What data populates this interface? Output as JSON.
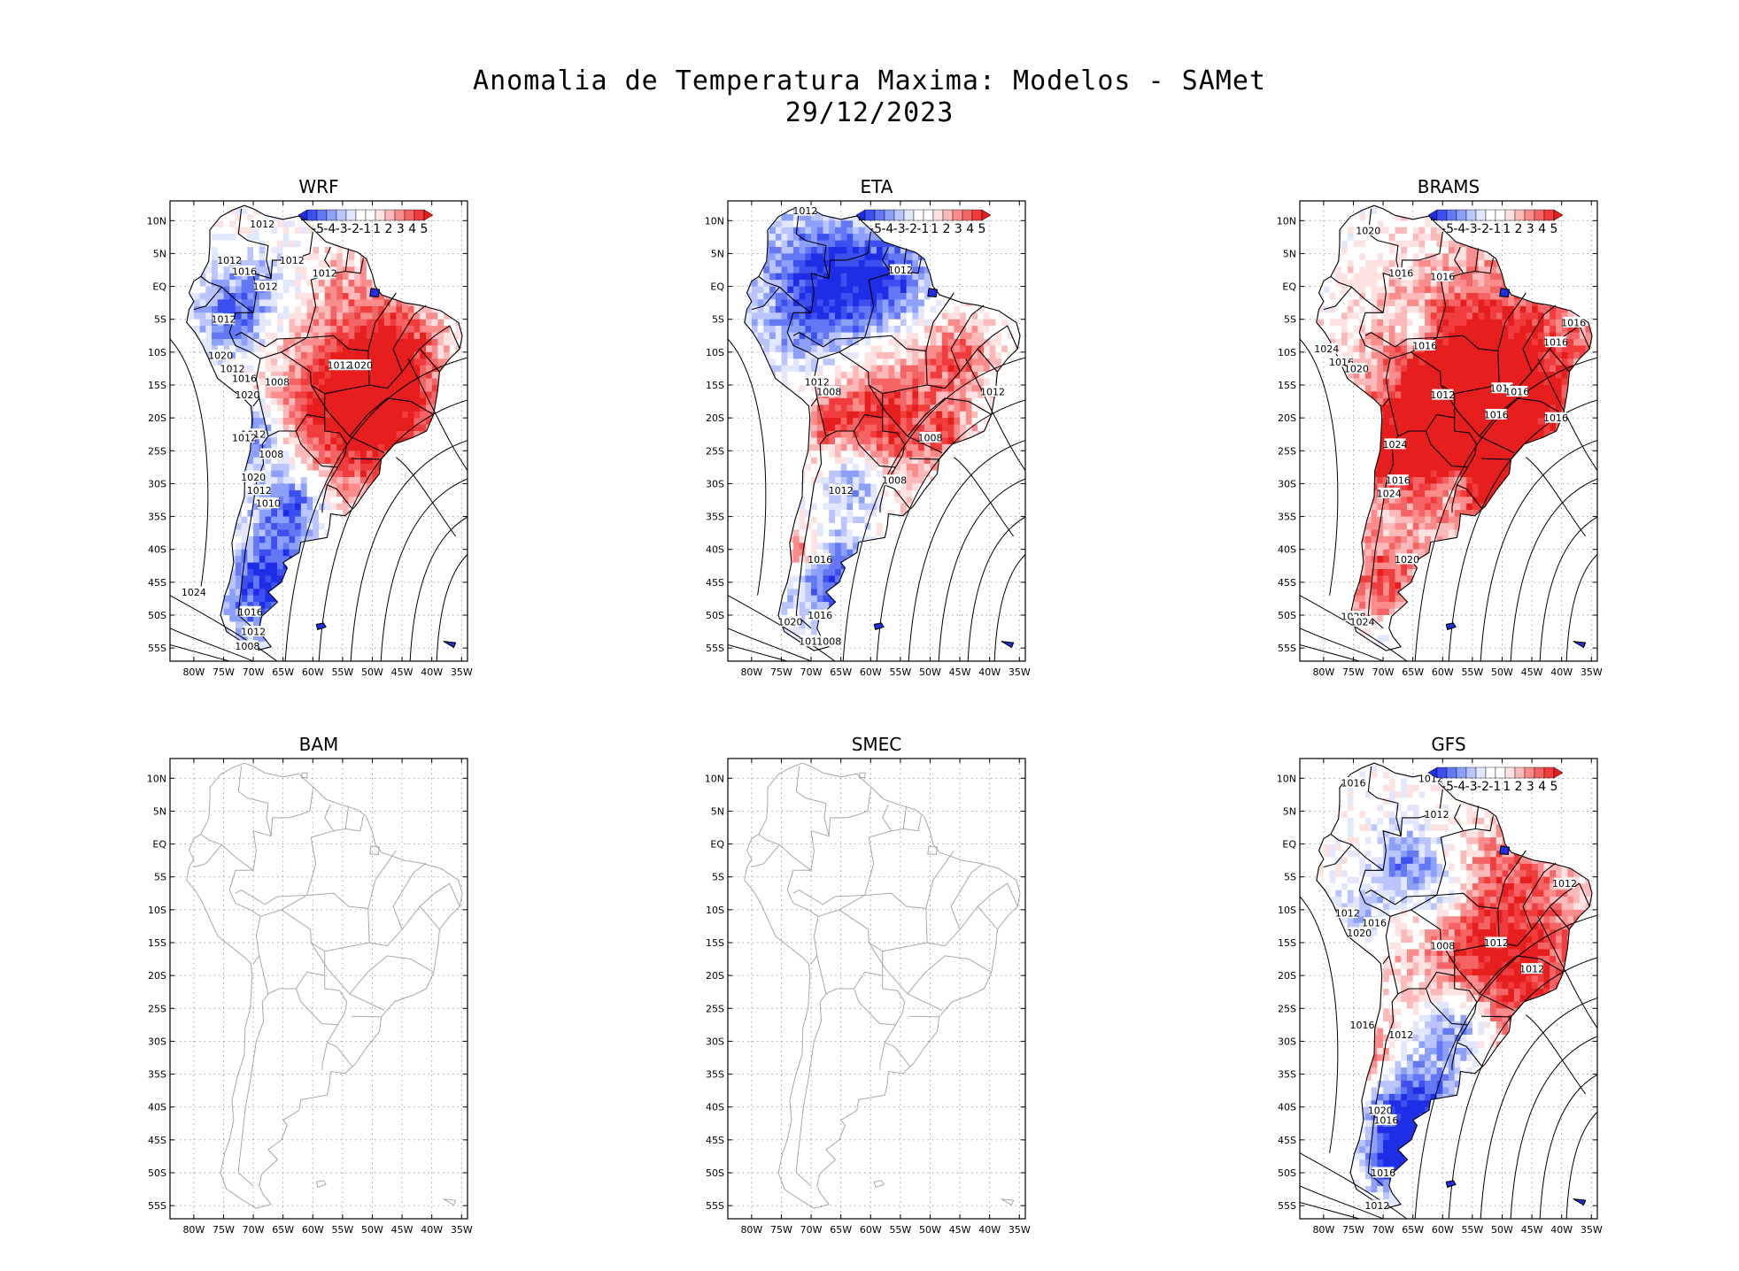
{
  "figure": {
    "title_line1": "Anomalia de Temperatura Maxima: Modelos - SAMet",
    "title_line2": "29/12/2023"
  },
  "axes": {
    "lon_labels": [
      "80W",
      "75W",
      "70W",
      "65W",
      "60W",
      "55W",
      "50W",
      "45W",
      "40W",
      "35W"
    ],
    "lat_labels": [
      "10N",
      "5N",
      "EQ",
      "5S",
      "10S",
      "15S",
      "20S",
      "25S",
      "30S",
      "35S",
      "40S",
      "45S",
      "50S",
      "55S"
    ]
  },
  "colorbar": {
    "labels": [
      "-5",
      "-4",
      "-3",
      "-2",
      "-1",
      "1",
      "2",
      "3",
      "4",
      "5"
    ],
    "colors": [
      "#1e2ee6",
      "#3c50f0",
      "#6478f5",
      "#8ca0fa",
      "#b9c5fc",
      "#e2e7fe",
      "#ffffff",
      "#ffffff",
      "#fee2e2",
      "#fcb9b9",
      "#fa8c8c",
      "#f56464",
      "#f03c3c",
      "#e61e1e"
    ]
  },
  "panels": [
    {
      "id": "wrf",
      "title": "WRF",
      "has_data": true,
      "map_color": "#000000",
      "contour_labels": [
        "1012",
        "1012",
        "1016",
        "1012",
        "1012",
        "1012",
        "1020",
        "1012",
        "1016",
        "1008",
        "1020",
        "1012",
        "1012",
        "1020",
        "1012",
        "1008",
        "1012",
        "1020",
        "1012",
        "1010",
        "1024",
        "1016",
        "1012",
        "1008"
      ]
    },
    {
      "id": "eta",
      "title": "ETA",
      "has_data": true,
      "map_color": "#000000",
      "contour_labels": [
        "1012",
        "1012",
        "1012",
        "1008",
        "1012",
        "1008",
        "1008",
        "1012",
        "1016",
        "1016",
        "1020",
        "1012",
        "1008"
      ]
    },
    {
      "id": "brams",
      "title": "BRAMS",
      "has_data": true,
      "map_color": "#000000",
      "contour_labels": [
        "1020",
        "1016",
        "1016",
        "1016",
        "1016",
        "1016",
        "1024",
        "1016",
        "1020",
        "1012",
        "1016",
        "1016",
        "1016",
        "1016",
        "1024",
        "1016",
        "1024",
        "1020",
        "1028",
        "1024"
      ]
    },
    {
      "id": "bam",
      "title": "BAM",
      "has_data": false,
      "map_color": "#a8a8a8",
      "contour_labels": []
    },
    {
      "id": "smec",
      "title": "SMEC",
      "has_data": false,
      "map_color": "#a8a8a8",
      "contour_labels": []
    },
    {
      "id": "gfs",
      "title": "GFS",
      "has_data": true,
      "map_color": "#000000",
      "contour_labels": [
        "1016",
        "1012",
        "1012",
        "1012",
        "1012",
        "1016",
        "1020",
        "1008",
        "1012",
        "1012",
        "1016",
        "1012",
        "1020",
        "1016",
        "1016",
        "1012"
      ]
    }
  ]
}
